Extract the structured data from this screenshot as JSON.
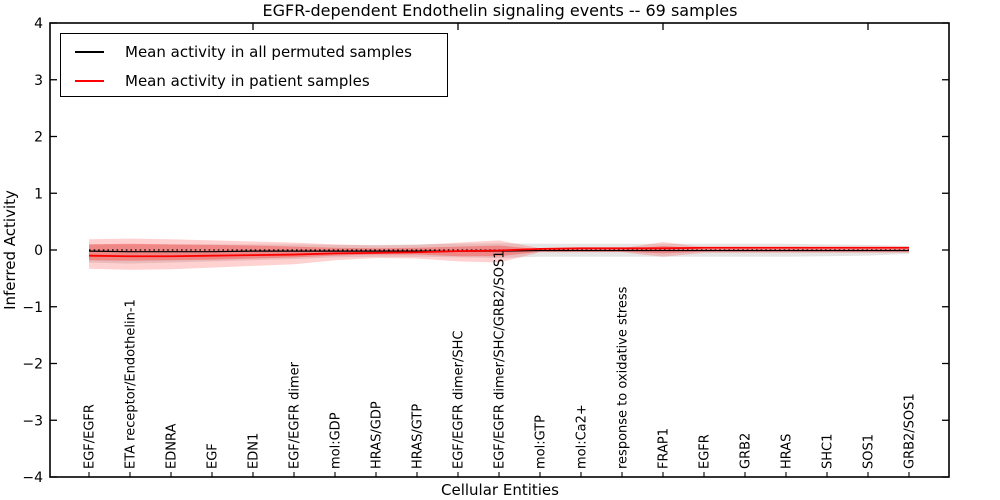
{
  "title": "EGFR-dependent Endothelin signaling events -- 69 samples",
  "axes": {
    "xlabel": "Cellular Entities",
    "ylabel": "Inferred Activity",
    "y_ticks": [
      4,
      3,
      2,
      1,
      0,
      -1,
      -2,
      -3,
      -4
    ],
    "ylim": [
      -4,
      4
    ]
  },
  "legend": {
    "items": [
      {
        "label": "Mean activity in all permuted samples",
        "color": "#000000"
      },
      {
        "label": "Mean activity in patient samples",
        "color": "#ff0000"
      }
    ]
  },
  "chart_data": {
    "type": "line",
    "title": "EGFR-dependent Endothelin signaling events -- 69 samples",
    "xlabel": "Cellular Entities",
    "ylabel": "Inferred Activity",
    "ylim": [
      -4,
      4
    ],
    "grid": false,
    "legend_position": "upper left",
    "categories": [
      "EGF/EGFR",
      "ETA receptor/Endothelin-1",
      "EDNRA",
      "EGF",
      "EDN1",
      "EGF/EGFR dimer",
      "mol:GDP",
      "HRAS/GDP",
      "HRAS/GTP",
      "EGF/EGFR dimer/SHC",
      "EGF/EGFR dimer/SHC/GRB2/SOS1",
      "mol:GTP",
      "mol:Ca2+",
      "response to oxidative stress",
      "FRAP1",
      "EGFR",
      "GRB2",
      "HRAS",
      "SHC1",
      "SOS1",
      "GRB2/SOS1"
    ],
    "top_axis_tick_indices": [
      4,
      9,
      14,
      19
    ],
    "zero_line": {
      "value": 0,
      "style": "dotted",
      "color": "#000000"
    },
    "series": [
      {
        "name": "Mean activity in all permuted samples",
        "color": "#000000",
        "values": [
          -0.02,
          -0.03,
          -0.03,
          -0.03,
          -0.02,
          -0.02,
          -0.02,
          -0.02,
          -0.02,
          -0.02,
          -0.02,
          -0.01,
          -0.01,
          -0.01,
          -0.01,
          -0.01,
          -0.01,
          -0.01,
          -0.01,
          -0.01,
          -0.01
        ],
        "band_upper": [
          0.1,
          0.1,
          0.1,
          0.1,
          0.1,
          0.1,
          0.09,
          0.09,
          0.1,
          0.11,
          0.12,
          0.11,
          0.11,
          0.11,
          0.11,
          0.11,
          0.11,
          0.11,
          0.1,
          0.09,
          0.07
        ],
        "band_lower": [
          -0.22,
          -0.24,
          -0.22,
          -0.2,
          -0.18,
          -0.16,
          -0.13,
          -0.12,
          -0.12,
          -0.13,
          -0.14,
          -0.12,
          -0.12,
          -0.12,
          -0.12,
          -0.12,
          -0.12,
          -0.12,
          -0.11,
          -0.1,
          -0.07
        ],
        "band_color": "#000000",
        "band_opacity": 0.1
      },
      {
        "name": "Mean activity in patient samples",
        "color": "#ff0000",
        "values": [
          -0.1,
          -0.11,
          -0.11,
          -0.1,
          -0.09,
          -0.08,
          -0.06,
          -0.05,
          -0.04,
          -0.02,
          -0.01,
          0.02,
          0.03,
          0.03,
          0.03,
          0.04,
          0.04,
          0.04,
          0.04,
          0.04,
          0.04
        ],
        "band_outer_upper": [
          0.19,
          0.2,
          0.19,
          0.17,
          0.15,
          0.13,
          0.1,
          0.08,
          0.09,
          0.13,
          0.17,
          0.03,
          0.03,
          0.03,
          0.14,
          0.05,
          0.05,
          0.05,
          0.05,
          0.05,
          0.05
        ],
        "band_outer_lower": [
          -0.33,
          -0.35,
          -0.34,
          -0.31,
          -0.28,
          -0.25,
          -0.18,
          -0.14,
          -0.15,
          -0.2,
          -0.22,
          -0.04,
          -0.04,
          -0.04,
          -0.12,
          -0.05,
          -0.05,
          -0.05,
          -0.05,
          -0.05,
          -0.05
        ],
        "band_inner_upper": [
          0.1,
          0.11,
          0.1,
          0.09,
          0.08,
          0.06,
          0.04,
          0.03,
          0.04,
          0.06,
          0.08,
          0.01,
          0.01,
          0.01,
          0.07,
          0.02,
          0.02,
          0.02,
          0.02,
          0.02,
          0.02
        ],
        "band_inner_lower": [
          -0.18,
          -0.19,
          -0.18,
          -0.17,
          -0.15,
          -0.13,
          -0.1,
          -0.08,
          -0.08,
          -0.11,
          -0.11,
          -0.03,
          -0.03,
          -0.03,
          -0.06,
          -0.03,
          -0.03,
          -0.03,
          -0.03,
          -0.03,
          -0.03
        ],
        "band_color": "#ff0000",
        "band_outer_opacity": 0.18,
        "band_inner_opacity": 0.28
      }
    ]
  },
  "colors": {
    "frame": "#000000",
    "background": "#ffffff",
    "permuted_line": "#000000",
    "patient_line": "#ff0000"
  }
}
